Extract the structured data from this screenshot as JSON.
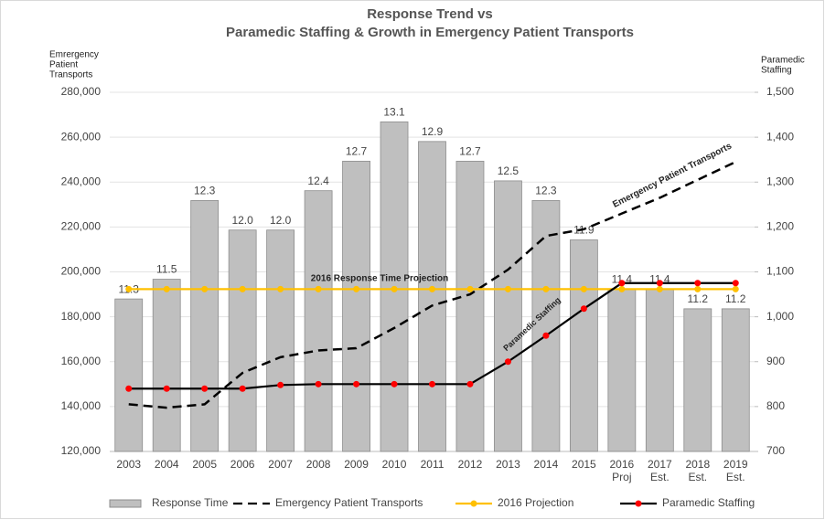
{
  "chart_data": {
    "type": "bar_line",
    "title_lines": [
      "Response Trend vs",
      "Paramedic Staffing & Growth in Emergency Patient Transports"
    ],
    "y_label_lines": [
      "Emrergency",
      "Patient",
      "Transports"
    ],
    "y2_label_lines": [
      "Paramedic",
      "Staffing"
    ],
    "categories": [
      "2003",
      "2004",
      "2005",
      "2006",
      "2007",
      "2008",
      "2009",
      "2010",
      "2011",
      "2012",
      "2013",
      "2014",
      "2015",
      "2016",
      "2017",
      "2018",
      "2019"
    ],
    "category_notes": [
      null,
      null,
      null,
      null,
      null,
      null,
      null,
      null,
      null,
      null,
      null,
      null,
      null,
      "Proj",
      "Est.",
      "Est.",
      "Est."
    ],
    "ylim": [
      120000,
      280000
    ],
    "yticks": [
      {
        "value": 120000,
        "label": "120,000"
      },
      {
        "value": 140000,
        "label": "140,000"
      },
      {
        "value": 160000,
        "label": "160,000"
      },
      {
        "value": 180000,
        "label": "180,000"
      },
      {
        "value": 200000,
        "label": "200,000"
      },
      {
        "value": 220000,
        "label": "220,000"
      },
      {
        "value": 240000,
        "label": "240,000"
      },
      {
        "value": 260000,
        "label": "260,000"
      },
      {
        "value": 280000,
        "label": "280,000"
      }
    ],
    "y2lim": [
      700,
      1500
    ],
    "y2ticks": [
      700,
      800,
      900,
      {
        "value": 1000,
        "label": "1,000"
      },
      {
        "value": 1100,
        "label": "1,100"
      },
      {
        "value": 1200,
        "label": "1,200"
      },
      {
        "value": 1300,
        "label": "1,300"
      },
      {
        "value": 1400,
        "label": "1,400"
      },
      {
        "value": 1500,
        "label": "1,500"
      }
    ],
    "y3lim": [
      9.75,
      13.4
    ],
    "series": [
      {
        "name": "Response Time",
        "kind": "bar",
        "axis": "y3",
        "color": "#bfbfbf",
        "values": [
          11.3,
          11.5,
          12.3,
          12.0,
          12.0,
          12.4,
          12.7,
          13.1,
          12.9,
          12.7,
          12.5,
          12.3,
          11.9,
          11.4,
          11.4,
          11.2,
          11.2
        ],
        "value_labels": [
          "11.3",
          "11.5",
          "12.3",
          "12.0",
          "12.0",
          "12.4",
          "12.7",
          "13.1",
          "12.9",
          "12.7",
          "12.5",
          "12.3",
          "11.9",
          "11.4",
          "11.4",
          "11.2",
          "11.2"
        ]
      },
      {
        "name": "Emergency Patient Transports",
        "kind": "dashed",
        "axis": "y",
        "color": "#000000",
        "values": [
          141000,
          139500,
          141000,
          155000,
          162000,
          165000,
          166000,
          175000,
          185000,
          190000,
          201000,
          216000,
          219000,
          226000,
          233000,
          241000,
          249000
        ]
      },
      {
        "name": "2016 Projection",
        "kind": "dotline",
        "axis": "y3",
        "color": "#ffc000",
        "marker": "#ffc000",
        "values": [
          11.4,
          11.4,
          11.4,
          11.4,
          11.4,
          11.4,
          11.4,
          11.4,
          11.4,
          11.4,
          11.4,
          11.4,
          11.4,
          11.4,
          11.4,
          11.4,
          11.4
        ]
      },
      {
        "name": "Paramedic Staffing",
        "kind": "dotline",
        "axis": "y2",
        "color": "#000000",
        "marker": "#ff0000",
        "values": [
          840,
          840,
          840,
          840,
          848,
          850,
          850,
          850,
          850,
          850,
          900,
          958,
          1018,
          1075,
          1075,
          1075,
          1075
        ]
      }
    ],
    "annotations": [
      "2016 Response Time Projection",
      "Emergency Patient Transports",
      "Paramedic Staffing"
    ]
  }
}
